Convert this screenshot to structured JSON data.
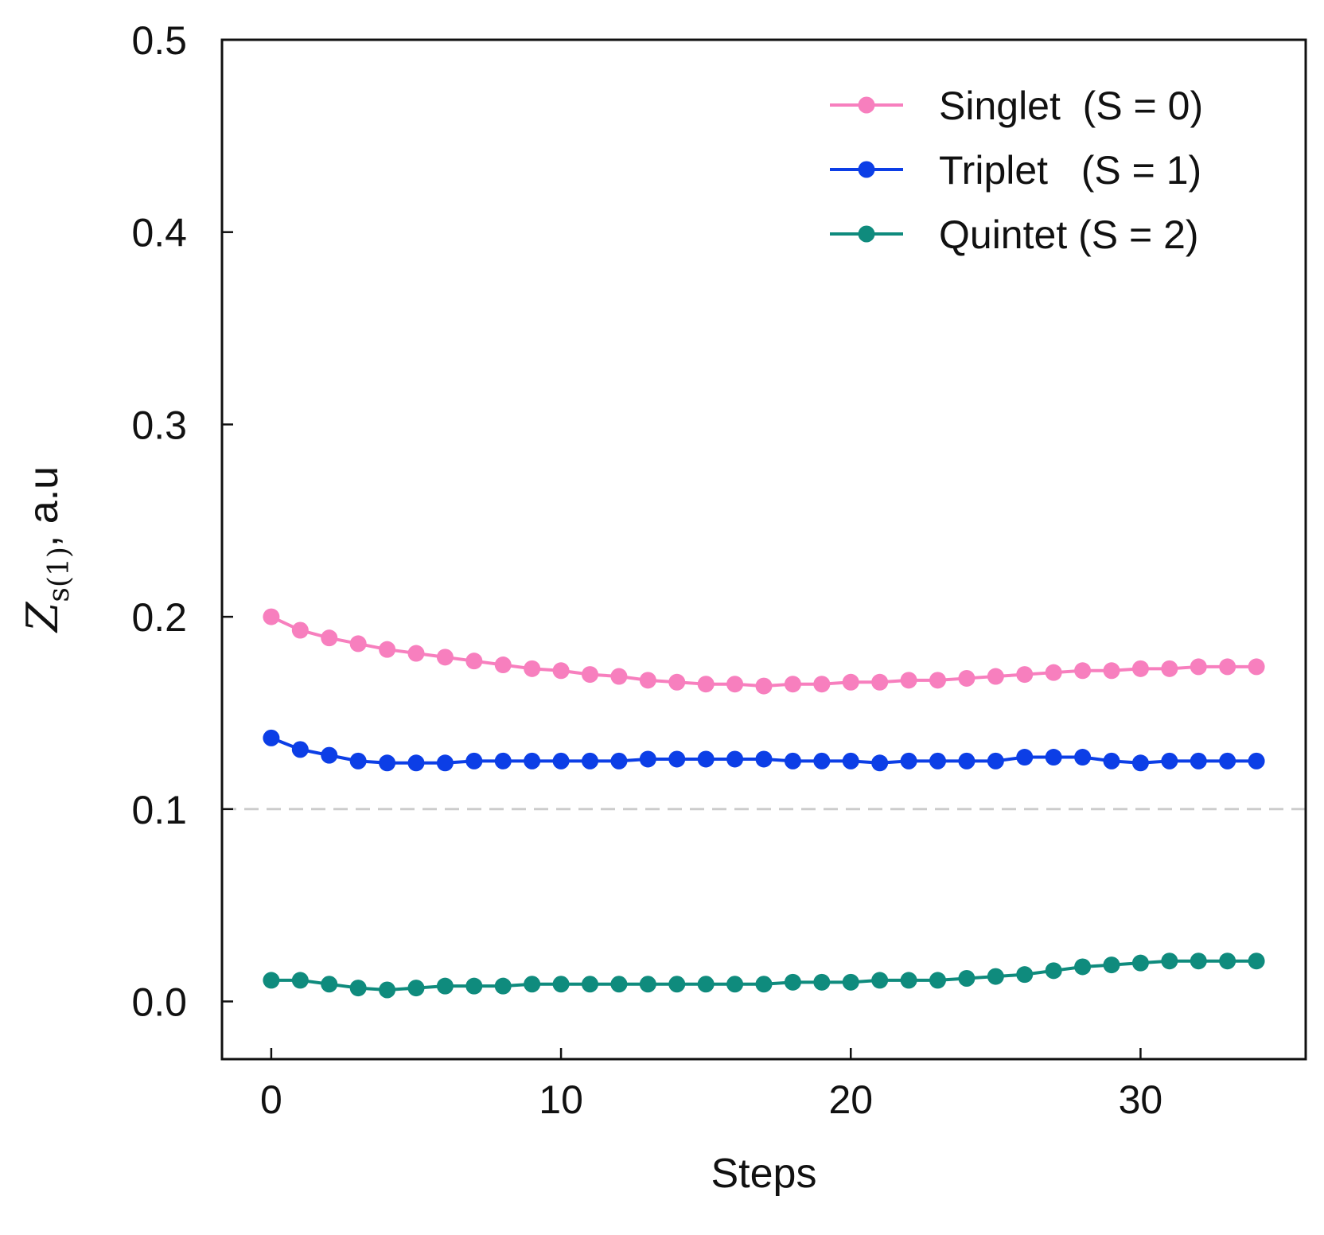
{
  "chart_data": {
    "type": "line",
    "xlabel": "Steps",
    "ylabel": {
      "symbol": "Z",
      "subscript": "s(1)",
      "suffix": ", a.u"
    },
    "xlim": [
      -1.7,
      35.7
    ],
    "ylim": [
      -0.03,
      0.5
    ],
    "xticks": [
      0,
      10,
      20,
      30
    ],
    "yticks": [
      0.0,
      0.1,
      0.2,
      0.3,
      0.4,
      0.5
    ],
    "ytick_labels": [
      "0.0",
      "0.1",
      "0.2",
      "0.3",
      "0.4",
      "0.5"
    ],
    "reference_line": {
      "y": 0.1,
      "style": "dashed",
      "color": "#cccccc"
    },
    "legend_position": "top-right",
    "grid": false,
    "x": [
      0,
      1,
      2,
      3,
      4,
      5,
      6,
      7,
      8,
      9,
      10,
      11,
      12,
      13,
      14,
      15,
      16,
      17,
      18,
      19,
      20,
      21,
      22,
      23,
      24,
      25,
      26,
      27,
      28,
      29,
      30,
      31,
      32,
      33,
      34
    ],
    "series": [
      {
        "name": "Singlet  (S = 0)",
        "color": "#f77fbe",
        "values": [
          0.2,
          0.193,
          0.189,
          0.186,
          0.183,
          0.181,
          0.179,
          0.177,
          0.175,
          0.173,
          0.172,
          0.17,
          0.169,
          0.167,
          0.166,
          0.165,
          0.165,
          0.164,
          0.165,
          0.165,
          0.166,
          0.166,
          0.167,
          0.167,
          0.168,
          0.169,
          0.17,
          0.171,
          0.172,
          0.172,
          0.173,
          0.173,
          0.174,
          0.174,
          0.174
        ]
      },
      {
        "name": "Triplet   (S = 1)",
        "color": "#0c3ee6",
        "values": [
          0.137,
          0.131,
          0.128,
          0.125,
          0.124,
          0.124,
          0.124,
          0.125,
          0.125,
          0.125,
          0.125,
          0.125,
          0.125,
          0.126,
          0.126,
          0.126,
          0.126,
          0.126,
          0.125,
          0.125,
          0.125,
          0.124,
          0.125,
          0.125,
          0.125,
          0.125,
          0.127,
          0.127,
          0.127,
          0.125,
          0.124,
          0.125,
          0.125,
          0.125,
          0.125
        ]
      },
      {
        "name": "Quintet (S = 2)",
        "color": "#0f8b7d",
        "values": [
          0.011,
          0.011,
          0.009,
          0.007,
          0.006,
          0.007,
          0.008,
          0.008,
          0.008,
          0.009,
          0.009,
          0.009,
          0.009,
          0.009,
          0.009,
          0.009,
          0.009,
          0.009,
          0.01,
          0.01,
          0.01,
          0.011,
          0.011,
          0.011,
          0.012,
          0.013,
          0.014,
          0.016,
          0.018,
          0.019,
          0.02,
          0.021,
          0.021,
          0.021,
          0.021
        ]
      }
    ]
  }
}
